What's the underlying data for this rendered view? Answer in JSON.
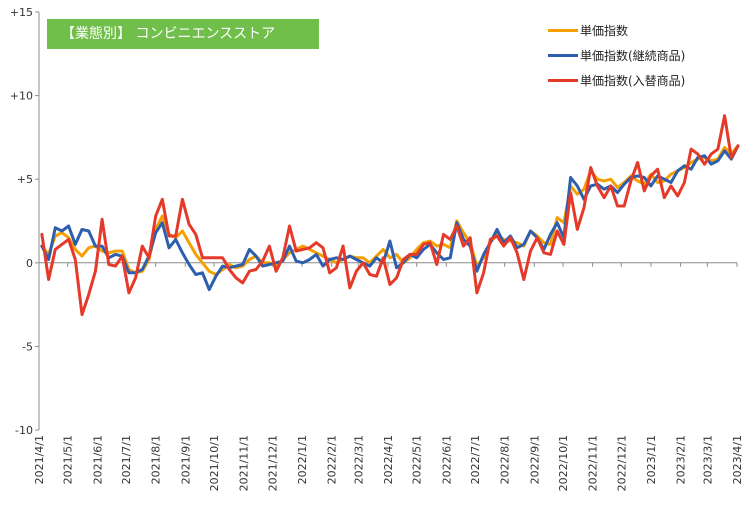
{
  "chart_data": {
    "type": "line",
    "title": "【業態別】 コンビニエンスストア",
    "xlabel": "",
    "ylabel": "",
    "ylim": [
      -10,
      15
    ],
    "yticks": [
      {
        "value": 15,
        "label": "+15"
      },
      {
        "value": 10,
        "label": "+10"
      },
      {
        "value": 5,
        "label": "+5"
      },
      {
        "value": 0,
        "label": "0"
      },
      {
        "value": -5,
        "label": "-5"
      },
      {
        "value": -10,
        "label": "-10"
      }
    ],
    "x_dates": [
      "2021/4/4",
      "2021/4/11",
      "2021/4/18",
      "2021/4/25",
      "2021/5/2",
      "2021/5/9",
      "2021/5/16",
      "2021/5/23",
      "2021/5/30",
      "2021/6/6",
      "2021/6/13",
      "2021/6/20",
      "2021/6/27",
      "2021/7/4",
      "2021/7/11",
      "2021/7/18",
      "2021/7/25",
      "2021/8/1",
      "2021/8/8",
      "2021/8/15",
      "2021/8/22",
      "2021/8/29",
      "2021/9/5",
      "2021/9/12",
      "2021/9/19",
      "2021/9/26",
      "2021/10/3",
      "2021/10/10",
      "2021/10/17",
      "2021/10/24",
      "2021/10/31",
      "2021/11/7",
      "2021/11/14",
      "2021/11/21",
      "2021/11/28",
      "2021/12/5",
      "2021/12/12",
      "2021/12/19",
      "2021/12/26",
      "2022/1/2",
      "2022/1/9",
      "2022/1/16",
      "2022/1/23",
      "2022/1/30",
      "2022/2/6",
      "2022/2/13",
      "2022/2/20",
      "2022/2/27",
      "2022/3/6",
      "2022/3/13",
      "2022/3/20",
      "2022/3/27",
      "2022/4/3",
      "2022/4/10",
      "2022/4/17",
      "2022/4/24",
      "2022/5/1",
      "2022/5/8",
      "2022/5/15",
      "2022/5/22",
      "2022/5/29",
      "2022/6/5",
      "2022/6/12",
      "2022/6/19",
      "2022/6/26",
      "2022/7/3",
      "2022/7/10",
      "2022/7/17",
      "2022/7/24",
      "2022/7/31",
      "2022/8/7",
      "2022/8/14",
      "2022/8/21",
      "2022/8/28",
      "2022/9/4",
      "2022/9/11",
      "2022/9/18",
      "2022/9/25",
      "2022/10/2",
      "2022/10/9",
      "2022/10/16",
      "2022/10/23",
      "2022/10/30",
      "2022/11/6",
      "2022/11/13",
      "2022/11/20",
      "2022/11/27",
      "2022/12/4",
      "2022/12/11",
      "2022/12/18",
      "2022/12/25",
      "2023/1/1",
      "2023/1/8",
      "2023/1/15",
      "2023/1/22",
      "2023/1/29",
      "2023/2/5",
      "2023/2/12",
      "2023/2/19",
      "2023/2/26",
      "2023/3/5",
      "2023/3/12",
      "2023/3/19",
      "2023/3/26",
      "2023/4/2"
    ],
    "x_ticks": [
      "2021/4/1",
      "2021/5/1",
      "2021/6/1",
      "2021/7/1",
      "2021/8/1",
      "2021/9/1",
      "2021/10/1",
      "2021/11/1",
      "2021/12/1",
      "2022/1/1",
      "2022/2/1",
      "2022/3/1",
      "2022/4/1",
      "2022/5/1",
      "2022/6/1",
      "2022/7/1",
      "2022/8/1",
      "2022/9/1",
      "2022/10/1",
      "2022/11/1",
      "2022/12/1",
      "2023/1/1",
      "2023/2/1",
      "2023/3/1",
      "2023/4/1"
    ],
    "series": [
      {
        "name": "単価指数",
        "color": "#f5a000",
        "values": [
          1.0,
          0.5,
          1.6,
          1.8,
          1.5,
          0.8,
          0.4,
          0.9,
          1.0,
          0.7,
          0.6,
          0.7,
          0.7,
          -0.4,
          -0.6,
          -0.5,
          0.2,
          2.0,
          2.8,
          1.7,
          1.5,
          1.9,
          1.2,
          0.5,
          0.0,
          -0.5,
          -0.7,
          -0.4,
          -0.1,
          -0.3,
          -0.2,
          0.2,
          0.4,
          0.0,
          0.0,
          -0.2,
          0.2,
          0.6,
          0.8,
          1.0,
          0.8,
          0.6,
          0.4,
          0.2,
          0.0,
          0.2,
          0.4,
          0.3,
          0.3,
          0.0,
          0.4,
          0.8,
          0.3,
          0.5,
          0.0,
          0.3,
          0.8,
          1.2,
          1.3,
          1.0,
          1.1,
          0.9,
          2.5,
          1.8,
          1.2,
          -0.2,
          0.3,
          1.2,
          1.7,
          1.4,
          1.3,
          1.2,
          1.0,
          1.9,
          1.6,
          1.2,
          1.1,
          2.7,
          2.4,
          4.6,
          4.1,
          4.4,
          5.5,
          5.0,
          4.9,
          5.0,
          4.5,
          4.8,
          5.2,
          4.9,
          4.7,
          5.3,
          4.8,
          4.9,
          5.3,
          5.5,
          5.7,
          6.0,
          6.2,
          6.3,
          6.1,
          6.2,
          6.9,
          6.5,
          7.0
        ]
      },
      {
        "name": "単価指数(継続商品)",
        "color": "#2e5fae",
        "values": [
          1.0,
          0.2,
          2.1,
          1.9,
          2.2,
          1.1,
          2.0,
          1.9,
          1.0,
          1.0,
          0.3,
          0.5,
          0.4,
          -0.6,
          -0.6,
          -0.4,
          0.4,
          1.8,
          2.4,
          0.9,
          1.4,
          0.6,
          -0.1,
          -0.7,
          -0.6,
          -1.6,
          -0.8,
          -0.2,
          -0.3,
          -0.2,
          -0.1,
          0.8,
          0.4,
          -0.2,
          -0.1,
          0.0,
          0.1,
          1.0,
          0.1,
          0.0,
          0.2,
          0.5,
          -0.2,
          0.2,
          0.3,
          0.2,
          0.4,
          0.2,
          0.0,
          -0.2,
          0.3,
          0.0,
          1.3,
          -0.3,
          0.0,
          0.5,
          0.3,
          0.8,
          1.1,
          0.6,
          0.2,
          0.3,
          2.4,
          1.4,
          1.0,
          -0.5,
          0.5,
          1.2,
          2.0,
          1.2,
          1.6,
          0.9,
          1.1,
          1.9,
          1.5,
          0.8,
          1.7,
          2.4,
          1.5,
          5.1,
          4.6,
          3.8,
          4.6,
          4.7,
          4.4,
          4.6,
          4.2,
          4.7,
          5.1,
          5.2,
          5.1,
          4.6,
          5.2,
          5.0,
          4.8,
          5.5,
          5.8,
          5.6,
          6.3,
          6.4,
          5.9,
          6.1,
          6.7,
          6.2,
          7.0
        ]
      },
      {
        "name": "単価指数(入替商品)",
        "color": "#e53a2a",
        "values": [
          1.7,
          -1.0,
          0.8,
          1.1,
          1.4,
          0.2,
          -3.1,
          -1.9,
          -0.5,
          2.6,
          -0.1,
          -0.2,
          0.4,
          -1.8,
          -0.9,
          1.0,
          0.3,
          2.8,
          3.8,
          1.6,
          1.6,
          3.8,
          2.3,
          1.7,
          0.3,
          0.3,
          0.3,
          0.3,
          -0.4,
          -0.9,
          -1.2,
          -0.5,
          -0.4,
          0.1,
          1.0,
          -0.5,
          0.3,
          2.2,
          0.7,
          0.8,
          0.9,
          1.2,
          0.9,
          -0.6,
          -0.3,
          1.0,
          -1.5,
          -0.5,
          0.0,
          -0.7,
          -0.8,
          0.3,
          -1.3,
          -0.9,
          0.2,
          0.5,
          0.5,
          1.1,
          1.2,
          -0.1,
          1.7,
          1.4,
          2.2,
          1.0,
          1.5,
          -1.8,
          -0.6,
          1.4,
          1.6,
          1.0,
          1.5,
          0.6,
          -1.0,
          0.7,
          1.5,
          0.6,
          0.5,
          1.9,
          1.1,
          4.2,
          2.0,
          3.3,
          5.7,
          4.6,
          3.9,
          4.6,
          3.4,
          3.4,
          4.9,
          6.0,
          4.3,
          5.2,
          5.6,
          3.9,
          4.6,
          4.0,
          4.8,
          6.8,
          6.5,
          5.9,
          6.5,
          6.8,
          8.8,
          6.3,
          7.0
        ]
      }
    ],
    "legend": "top-right",
    "grid": false
  }
}
